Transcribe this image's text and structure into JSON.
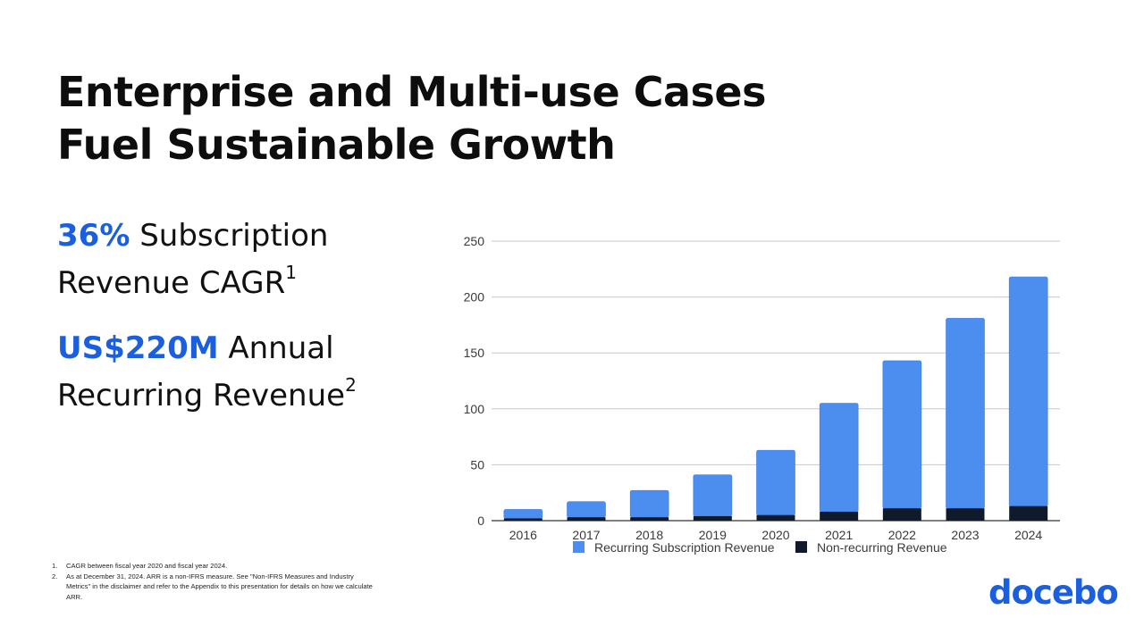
{
  "title": {
    "line1": "Enterprise and Multi-use Cases",
    "line2": "Fuel Sustainable Growth"
  },
  "stats": [
    {
      "highlight": "36%",
      "text1": "Subscription",
      "text2": "Revenue CAGR",
      "sup": "1"
    },
    {
      "highlight": "US$220M",
      "text1": "Annual",
      "text2": "Recurring Revenue",
      "sup": "2"
    }
  ],
  "footnotes": [
    {
      "num": "1.",
      "text": "CAGR between fiscal year 2020 and fiscal year 2024."
    },
    {
      "num": "2.",
      "text": "As at December 31, 2024.  ARR is a non-IFRS measure. See \"Non-IFRS Measures and Industry Metrics\" in the disclaimer and refer to the Appendix to this presentation for details on how we calculate ARR."
    }
  ],
  "logo": "docebo",
  "colors": {
    "accent": "#1a5fe0",
    "recurring": "#4c8df0",
    "nonrecurring": "#0f1a2b",
    "grid": "#c8c8c8"
  },
  "chart_data": {
    "type": "bar",
    "stacked": true,
    "categories": [
      "2016",
      "2017",
      "2018",
      "2019",
      "2020",
      "2021",
      "2022",
      "2023",
      "2024"
    ],
    "series": [
      {
        "name": "Non-recurring Revenue",
        "values": [
          2,
          3,
          3,
          4,
          5,
          8,
          11,
          11,
          13
        ]
      },
      {
        "name": "Recurring Subscription Revenue",
        "values": [
          8,
          14,
          24,
          37,
          58,
          97,
          132,
          170,
          205
        ]
      }
    ],
    "ylim": [
      0,
      250
    ],
    "yticks": [
      0,
      50,
      100,
      150,
      200,
      250
    ],
    "grid": true,
    "legend": "bottom"
  }
}
